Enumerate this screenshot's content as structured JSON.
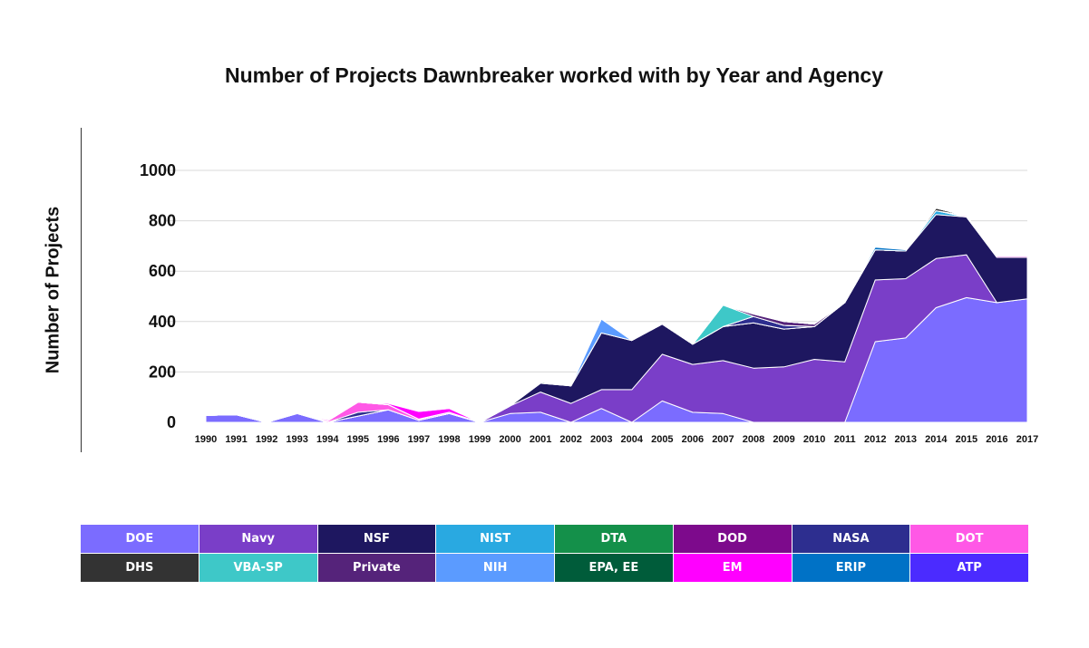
{
  "chart_data": {
    "type": "area",
    "stacked": true,
    "title": "Number of Projects Dawnbreaker worked with by Year and Agency",
    "xlabel": "",
    "ylabel": "Number of Projects",
    "ylim": [
      0,
      1000
    ],
    "yticks": [
      0,
      200,
      400,
      600,
      800,
      1000
    ],
    "grid": true,
    "legend_placement": "bottom",
    "x": [
      "1990",
      "1991",
      "1992",
      "1993",
      "1994",
      "1995",
      "1996",
      "1997",
      "1998",
      "1999",
      "2000",
      "2001",
      "2002",
      "2003",
      "2004",
      "2005",
      "2006",
      "2007",
      "2008",
      "2009",
      "2010",
      "2011",
      "2012",
      "2013",
      "2014",
      "2015",
      "2016",
      "2017"
    ],
    "series": [
      {
        "name": "DOE",
        "color": "#7B6CFF",
        "values": [
          28,
          30,
          0,
          35,
          0,
          25,
          50,
          8,
          35,
          0,
          35,
          40,
          0,
          55,
          0,
          85,
          40,
          35,
          0,
          0,
          0,
          0,
          320,
          335,
          455,
          495,
          475,
          490
        ]
      },
      {
        "name": "Navy",
        "color": "#7A3EC8",
        "values": [
          0,
          0,
          0,
          0,
          0,
          0,
          0,
          0,
          0,
          0,
          30,
          80,
          75,
          75,
          130,
          185,
          190,
          210,
          215,
          220,
          250,
          240,
          245,
          235,
          195,
          170,
          0,
          0
        ]
      },
      {
        "name": "NSF",
        "color": "#1E1760",
        "values": [
          0,
          0,
          0,
          0,
          0,
          0,
          0,
          0,
          0,
          0,
          0,
          35,
          70,
          225,
          195,
          120,
          80,
          135,
          180,
          150,
          130,
          235,
          120,
          110,
          175,
          150,
          180,
          165
        ]
      },
      {
        "name": "NIST",
        "color": "#29A9E1",
        "values": [
          0,
          0,
          0,
          0,
          0,
          0,
          0,
          0,
          0,
          0,
          0,
          0,
          0,
          0,
          0,
          0,
          0,
          0,
          0,
          0,
          0,
          0,
          0,
          0,
          15,
          0,
          0,
          0
        ]
      },
      {
        "name": "DTA",
        "color": "#14904A",
        "values": [
          0,
          0,
          0,
          0,
          0,
          0,
          0,
          0,
          0,
          0,
          0,
          5,
          0,
          0,
          0,
          0,
          0,
          0,
          0,
          0,
          0,
          0,
          0,
          0,
          0,
          0,
          0,
          0
        ]
      },
      {
        "name": "DOD",
        "color": "#7D0A8C",
        "values": [
          0,
          0,
          0,
          0,
          0,
          0,
          0,
          0,
          0,
          0,
          0,
          0,
          0,
          0,
          0,
          0,
          0,
          0,
          0,
          0,
          0,
          0,
          0,
          0,
          0,
          0,
          0,
          0
        ]
      },
      {
        "name": "NASA",
        "color": "#2D2E8F",
        "values": [
          0,
          0,
          0,
          0,
          0,
          15,
          0,
          0,
          0,
          0,
          0,
          0,
          0,
          0,
          0,
          0,
          0,
          0,
          25,
          15,
          0,
          0,
          0,
          0,
          0,
          0,
          0,
          0
        ]
      },
      {
        "name": "DOT",
        "color": "#FF58E6",
        "values": [
          0,
          0,
          0,
          0,
          5,
          40,
          20,
          5,
          5,
          0,
          0,
          0,
          0,
          0,
          0,
          0,
          0,
          0,
          0,
          0,
          0,
          0,
          0,
          0,
          0,
          5,
          5,
          5
        ]
      },
      {
        "name": "DHS",
        "color": "#333333",
        "values": [
          0,
          0,
          0,
          0,
          0,
          0,
          0,
          0,
          0,
          0,
          0,
          0,
          0,
          0,
          0,
          0,
          0,
          0,
          0,
          0,
          0,
          0,
          0,
          0,
          10,
          0,
          0,
          0
        ]
      },
      {
        "name": "VBA-SP",
        "color": "#3EC8C8",
        "values": [
          0,
          0,
          0,
          0,
          0,
          0,
          0,
          0,
          0,
          0,
          0,
          0,
          0,
          0,
          0,
          0,
          0,
          85,
          0,
          0,
          0,
          0,
          0,
          0,
          0,
          0,
          0,
          0
        ]
      },
      {
        "name": "Private",
        "color": "#55237A",
        "values": [
          0,
          0,
          0,
          0,
          0,
          0,
          0,
          0,
          0,
          0,
          0,
          0,
          0,
          0,
          0,
          0,
          0,
          0,
          10,
          15,
          10,
          0,
          0,
          0,
          0,
          0,
          0,
          0
        ]
      },
      {
        "name": "NIH",
        "color": "#5B9BFF",
        "values": [
          0,
          0,
          0,
          0,
          0,
          0,
          0,
          0,
          0,
          0,
          0,
          0,
          0,
          55,
          0,
          0,
          0,
          0,
          0,
          0,
          0,
          0,
          0,
          0,
          0,
          0,
          0,
          0
        ]
      },
      {
        "name": "EPA, EE",
        "color": "#005C3A",
        "values": [
          0,
          0,
          0,
          0,
          0,
          0,
          0,
          0,
          0,
          0,
          0,
          0,
          0,
          0,
          0,
          0,
          0,
          0,
          0,
          0,
          0,
          0,
          0,
          0,
          0,
          0,
          0,
          0
        ]
      },
      {
        "name": "EM",
        "color": "#FF00FF",
        "values": [
          0,
          0,
          0,
          0,
          5,
          0,
          5,
          30,
          15,
          0,
          0,
          0,
          0,
          0,
          0,
          0,
          0,
          0,
          0,
          0,
          0,
          0,
          0,
          0,
          0,
          0,
          0,
          0
        ]
      },
      {
        "name": "ERIP",
        "color": "#0072C6",
        "values": [
          0,
          0,
          0,
          0,
          0,
          0,
          0,
          0,
          0,
          0,
          0,
          0,
          0,
          0,
          0,
          0,
          0,
          0,
          0,
          0,
          0,
          0,
          10,
          5,
          0,
          0,
          0,
          0
        ]
      },
      {
        "name": "ATP",
        "color": "#4B2BFF",
        "values": [
          0,
          0,
          0,
          0,
          0,
          0,
          0,
          0,
          0,
          0,
          0,
          0,
          0,
          0,
          0,
          0,
          0,
          0,
          0,
          0,
          0,
          0,
          0,
          0,
          0,
          0,
          0,
          0
        ]
      }
    ],
    "legend_order": [
      "DOE",
      "Navy",
      "NSF",
      "NIST",
      "DTA",
      "DOD",
      "NASA",
      "DOT",
      "DHS",
      "VBA-SP",
      "Private",
      "NIH",
      "EPA, EE",
      "EM",
      "ERIP",
      "ATP"
    ]
  }
}
